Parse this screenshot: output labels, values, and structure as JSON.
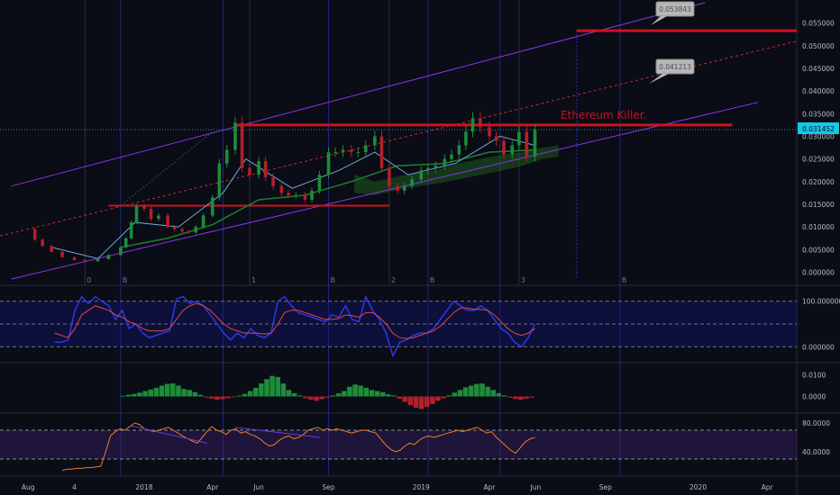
{
  "chart_data": [
    {
      "type": "line",
      "panel": "price",
      "title": "",
      "ylabel": "",
      "ylim": [
        -0.0015,
        0.0585
      ],
      "y_ticks": [
        "0.055000",
        "0.050000",
        "0.045000",
        "0.040000",
        "0.035000",
        "0.030000",
        "0.025000",
        "0.020000",
        "0.015000",
        "0.010000",
        "0.005000",
        "0.000000"
      ],
      "last_price_label": "0.031452",
      "last_price": 0.031452,
      "series": [
        {
          "type": "candlestick",
          "x": [
            "2017-08-01",
            "2017-08-10",
            "2017-08-20",
            "2017-09-01",
            "2017-09-15",
            "2017-10-01",
            "2017-10-15",
            "2017-11-01",
            "2017-11-15",
            "2017-12-01",
            "2017-12-08",
            "2017-12-15",
            "2017-12-22",
            "2018-01-01",
            "2018-01-10",
            "2018-01-20",
            "2018-02-01",
            "2018-02-10",
            "2018-02-20",
            "2018-03-01",
            "2018-03-10",
            "2018-03-20",
            "2018-04-01",
            "2018-04-10",
            "2018-04-20",
            "2018-05-01",
            "2018-05-10",
            "2018-05-20",
            "2018-06-01",
            "2018-06-10",
            "2018-06-20",
            "2018-07-01",
            "2018-07-10",
            "2018-07-20",
            "2018-08-01",
            "2018-08-10",
            "2018-08-20",
            "2018-09-01",
            "2018-09-10",
            "2018-09-20",
            "2018-10-01",
            "2018-10-10",
            "2018-10-20",
            "2018-11-01",
            "2018-11-10",
            "2018-11-20",
            "2018-12-01",
            "2018-12-10",
            "2018-12-20",
            "2019-01-01",
            "2019-01-10",
            "2019-01-20",
            "2019-02-01",
            "2019-02-10",
            "2019-02-20",
            "2019-03-01",
            "2019-03-10",
            "2019-03-20",
            "2019-04-01",
            "2019-04-10",
            "2019-04-20",
            "2019-05-01",
            "2019-05-10",
            "2019-05-20",
            "2019-05-31"
          ],
          "values": [
            0.0095,
            0.0072,
            0.0058,
            0.0045,
            0.0033,
            0.0027,
            0.0024,
            0.0029,
            0.0038,
            0.0055,
            0.0075,
            0.011,
            0.0145,
            0.014,
            0.0118,
            0.0125,
            0.01,
            0.0095,
            0.009,
            0.0088,
            0.01,
            0.0125,
            0.0165,
            0.024,
            0.027,
            0.033,
            0.023,
            0.0215,
            0.0245,
            0.021,
            0.019,
            0.0175,
            0.017,
            0.017,
            0.016,
            0.018,
            0.0215,
            0.0265,
            0.0265,
            0.027,
            0.0265,
            0.0265,
            0.028,
            0.03,
            0.023,
            0.019,
            0.018,
            0.019,
            0.0205,
            0.0225,
            0.023,
            0.0235,
            0.025,
            0.026,
            0.028,
            0.031,
            0.034,
            0.032,
            0.03,
            0.029,
            0.026,
            0.028,
            0.031,
            0.0255,
            0.0315
          ]
        },
        {
          "name": "",
          "color": "#1d7a2a",
          "type": "moving-average",
          "x": [
            "2017-12-01",
            "2018-02-01",
            "2018-04-01",
            "2018-06-01",
            "2018-08-01",
            "2018-10-01",
            "2018-12-01",
            "2019-02-01",
            "2019-04-01",
            "2019-05-31"
          ],
          "values": [
            0.0055,
            0.0075,
            0.0105,
            0.016,
            0.017,
            0.02,
            0.0235,
            0.024,
            0.0265,
            0.027
          ]
        },
        {
          "name": "",
          "color": "#6fa8d8",
          "type": "moving-average",
          "x": [
            "2017-09-01",
            "2017-11-01",
            "2017-12-20",
            "2018-02-15",
            "2018-04-15",
            "2018-05-15",
            "2018-07-15",
            "2018-09-15",
            "2018-11-01",
            "2018-12-15",
            "2019-02-15",
            "2019-04-15",
            "2019-05-31"
          ],
          "values": [
            0.0055,
            0.003,
            0.011,
            0.01,
            0.0175,
            0.025,
            0.0185,
            0.0225,
            0.0265,
            0.0215,
            0.024,
            0.03,
            0.028
          ]
        }
      ],
      "annotations": [
        {
          "text": "Ethereum Killer.",
          "color": "#d0121a"
        },
        {
          "text": "0.053843",
          "kind": "price-target-callout"
        },
        {
          "text": "0.041213",
          "kind": "price-target-callout"
        }
      ],
      "horizontal_levels": [
        0.0533,
        0.0325,
        0.0147
      ],
      "wave_labels": [
        "0",
        "B",
        "1",
        "B",
        "2",
        "B",
        "3",
        "B"
      ]
    },
    {
      "type": "line",
      "panel": "stochastic",
      "ylim": [
        -25,
        125
      ],
      "y_ticks": [
        "100.000000",
        "0.000000"
      ],
      "series": [
        {
          "name": "",
          "color": "#2f3af0",
          "values": [
            10,
            10,
            15,
            80,
            110,
            95,
            110,
            100,
            90,
            60,
            80,
            40,
            50,
            30,
            20,
            25,
            30,
            35,
            105,
            110,
            95,
            100,
            90,
            70,
            50,
            30,
            15,
            30,
            20,
            40,
            25,
            20,
            30,
            100,
            110,
            90,
            75,
            70,
            65,
            60,
            55,
            70,
            65,
            90,
            60,
            55,
            110,
            80,
            60,
            30,
            -20,
            10,
            15,
            25,
            30,
            30,
            40,
            60,
            80,
            100,
            90,
            80,
            80,
            90,
            80,
            60,
            40,
            30,
            10,
            0,
            20,
            50
          ]
        },
        {
          "name": "",
          "color": "#e0483a",
          "values": [
            30,
            25,
            20,
            40,
            70,
            80,
            90,
            85,
            80,
            70,
            65,
            55,
            50,
            40,
            35,
            35,
            35,
            40,
            60,
            80,
            90,
            95,
            90,
            80,
            65,
            50,
            40,
            35,
            30,
            30,
            30,
            28,
            30,
            50,
            75,
            80,
            80,
            75,
            70,
            65,
            60,
            60,
            62,
            70,
            68,
            65,
            75,
            75,
            65,
            50,
            30,
            20,
            18,
            20,
            25,
            30,
            35,
            45,
            60,
            75,
            85,
            85,
            82,
            82,
            80,
            70,
            55,
            40,
            30,
            25,
            30,
            40
          ]
        }
      ]
    },
    {
      "type": "bar",
      "panel": "macd-histogram",
      "ylim": [
        -0.006,
        0.0135
      ],
      "y_ticks": [
        "0.0100",
        "0.0000"
      ],
      "colors": {
        "positive": "#1e8c3a",
        "negative": "#b3202a"
      },
      "values": [
        0.0003,
        0.0008,
        0.0012,
        0.0018,
        0.0025,
        0.0032,
        0.004,
        0.005,
        0.0058,
        0.006,
        0.005,
        0.0035,
        0.003,
        0.002,
        0.0008,
        -0.0005,
        -0.001,
        -0.0015,
        -0.0012,
        -0.0008,
        -0.0004,
        0.0004,
        0.0012,
        0.0025,
        0.004,
        0.006,
        0.008,
        0.0095,
        0.009,
        0.006,
        0.003,
        0.0015,
        0.0005,
        -0.0008,
        -0.0015,
        -0.002,
        -0.0012,
        -0.0005,
        0.0005,
        0.0015,
        0.0025,
        0.0045,
        0.0055,
        0.005,
        0.004,
        0.003,
        0.0025,
        0.002,
        0.001,
        0.0005,
        -0.001,
        -0.0025,
        -0.004,
        -0.0052,
        -0.0058,
        -0.0048,
        -0.0035,
        -0.002,
        -0.0008,
        0.0005,
        0.0018,
        0.003,
        0.0042,
        0.005,
        0.0058,
        0.006,
        0.0045,
        0.003,
        0.0015,
        0.0005,
        -0.0005,
        -0.0012,
        -0.0015,
        -0.001,
        -0.0005
      ]
    },
    {
      "type": "line",
      "panel": "rsi",
      "ylim": [
        10,
        90
      ],
      "y_ticks": [
        "80.0000",
        "40.0000"
      ],
      "series": [
        {
          "name": "",
          "color": "#e8802a",
          "values": [
            14,
            16,
            16,
            17,
            17,
            18,
            18,
            19,
            20,
            40,
            62,
            68,
            72,
            70,
            75,
            80,
            78,
            72,
            70,
            68,
            70,
            72,
            74,
            70,
            66,
            62,
            58,
            55,
            52,
            60,
            68,
            75,
            70,
            68,
            64,
            70,
            72,
            66,
            68,
            64,
            62,
            58,
            52,
            48,
            50,
            56,
            60,
            62,
            58,
            60,
            64,
            70,
            72,
            74,
            70,
            72,
            70,
            72,
            70,
            68,
            66,
            68,
            70,
            70,
            68,
            66,
            58,
            50,
            44,
            40,
            42,
            48,
            52,
            50,
            56,
            60,
            62,
            60,
            62,
            64,
            66,
            68,
            70,
            68,
            70,
            72,
            74,
            70,
            66,
            68,
            60,
            54,
            48,
            42,
            38,
            46,
            54,
            58,
            60
          ]
        }
      ]
    }
  ],
  "x_axis_labels": [
    "Aug",
    "4",
    "2018",
    "Apr",
    "Jun",
    "Sep",
    "2019",
    "Apr",
    "Jun",
    "Sep",
    "2020",
    "Apr"
  ],
  "colors": {
    "background": "#0a0c16",
    "channel": "#8a35e8",
    "level": "#d0121a",
    "midline": "#d02a2a",
    "candle_up": "#1e8c3a",
    "candle_down": "#b3202a",
    "last_price_badge": "#14c9e8"
  }
}
